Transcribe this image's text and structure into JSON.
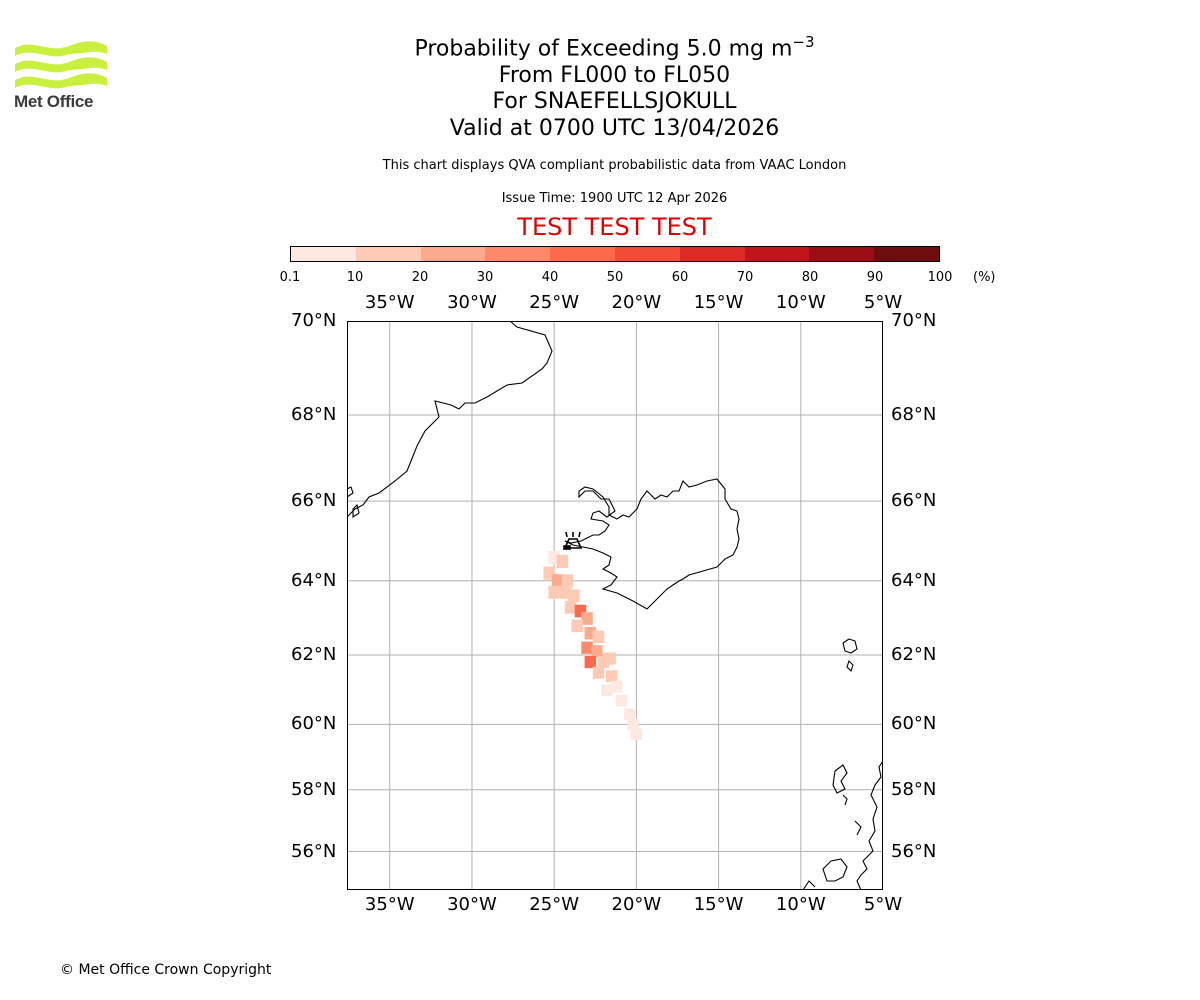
{
  "header": {
    "title_prefix": "Probability of Exceeding 5.0 mg m",
    "title_exponent": "−3",
    "level_range": "From FL000 to FL050",
    "volcano": "For SNAEFELLSJOKULL",
    "valid_time": "Valid at 0700 UTC 13/04/2026",
    "subtitle": "This chart displays QVA compliant probabilistic data from VAAC London",
    "issue_time": "Issue Time: 1900 UTC 12 Apr 2026",
    "test_banner": "TEST TEST TEST"
  },
  "logo": {
    "text": "Met Office",
    "icon": "met-office-waves-icon",
    "color": "#c8f03c"
  },
  "colorbar": {
    "unit": "(%)",
    "ticks": [
      "0.1",
      "10",
      "20",
      "30",
      "40",
      "50",
      "60",
      "70",
      "80",
      "90",
      "100"
    ],
    "colors": [
      "#fee9e2",
      "#fdcab5",
      "#fcaa8e",
      "#fc8a6a",
      "#fb6b4b",
      "#f34a35",
      "#dd2a25",
      "#bf151b",
      "#9b0d14",
      "#6e0d0d"
    ]
  },
  "map": {
    "lon_labels": [
      "35°W",
      "30°W",
      "25°W",
      "20°W",
      "15°W",
      "10°W",
      "5°W"
    ],
    "lat_labels": [
      "70°N",
      "68°N",
      "66°N",
      "64°N",
      "62°N",
      "60°N",
      "58°N",
      "56°N"
    ],
    "extent": {
      "lon_min": -37.6,
      "lon_max": -5.0,
      "lat_min": 54.7,
      "lat_max": 70.0
    },
    "volcano_marker": "volcano-icon",
    "plume": {
      "description_units": "probability percent at lon/lat cells",
      "cells": [
        {
          "lon": -25.0,
          "lat": 64.6,
          "p": 8
        },
        {
          "lon": -24.5,
          "lat": 64.5,
          "p": 10
        },
        {
          "lon": -25.3,
          "lat": 64.2,
          "p": 12
        },
        {
          "lon": -24.8,
          "lat": 64.0,
          "p": 25
        },
        {
          "lon": -24.2,
          "lat": 64.0,
          "p": 15
        },
        {
          "lon": -25.0,
          "lat": 63.7,
          "p": 12
        },
        {
          "lon": -24.3,
          "lat": 63.7,
          "p": 18
        },
        {
          "lon": -23.8,
          "lat": 63.6,
          "p": 10
        },
        {
          "lon": -24.0,
          "lat": 63.3,
          "p": 14
        },
        {
          "lon": -23.4,
          "lat": 63.2,
          "p": 40
        },
        {
          "lon": -23.0,
          "lat": 63.0,
          "p": 22
        },
        {
          "lon": -23.6,
          "lat": 62.8,
          "p": 12
        },
        {
          "lon": -22.8,
          "lat": 62.6,
          "p": 26
        },
        {
          "lon": -22.3,
          "lat": 62.5,
          "p": 15
        },
        {
          "lon": -23.0,
          "lat": 62.2,
          "p": 30
        },
        {
          "lon": -22.4,
          "lat": 62.1,
          "p": 20
        },
        {
          "lon": -22.8,
          "lat": 61.8,
          "p": 45
        },
        {
          "lon": -22.0,
          "lat": 61.8,
          "p": 18
        },
        {
          "lon": -21.6,
          "lat": 61.9,
          "p": 12
        },
        {
          "lon": -22.3,
          "lat": 61.5,
          "p": 14
        },
        {
          "lon": -21.5,
          "lat": 61.4,
          "p": 12
        },
        {
          "lon": -21.2,
          "lat": 61.1,
          "p": 8
        },
        {
          "lon": -21.8,
          "lat": 61.0,
          "p": 9
        },
        {
          "lon": -20.9,
          "lat": 60.7,
          "p": 7
        },
        {
          "lon": -20.4,
          "lat": 60.3,
          "p": 5
        },
        {
          "lon": -20.2,
          "lat": 60.0,
          "p": 4
        },
        {
          "lon": -20.0,
          "lat": 59.7,
          "p": 3
        }
      ]
    }
  },
  "footer": {
    "copyright": "© Met Office Crown Copyright"
  }
}
